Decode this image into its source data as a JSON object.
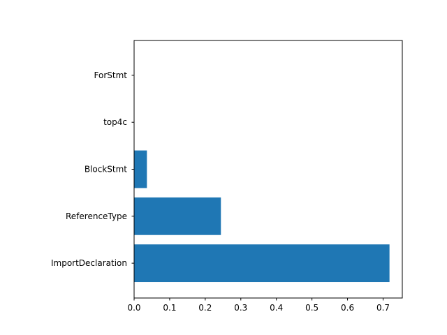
{
  "chart_data": {
    "type": "bar",
    "orientation": "horizontal",
    "categories": [
      "ImportDeclaration",
      "ReferenceType",
      "BlockStmt",
      "top4c",
      "ForStmt"
    ],
    "values": [
      0.718,
      0.244,
      0.036,
      0.0,
      0.0
    ],
    "title": "",
    "xlabel": "",
    "ylabel": "",
    "xlim": [
      0,
      0.754
    ],
    "xticks": [
      0.0,
      0.1,
      0.2,
      0.3,
      0.4,
      0.5,
      0.6,
      0.7
    ],
    "xtick_labels": [
      "0.0",
      "0.1",
      "0.2",
      "0.3",
      "0.4",
      "0.5",
      "0.6",
      "0.7"
    ],
    "grid": false,
    "legend": "none",
    "bar_color": "#1f77b4"
  }
}
